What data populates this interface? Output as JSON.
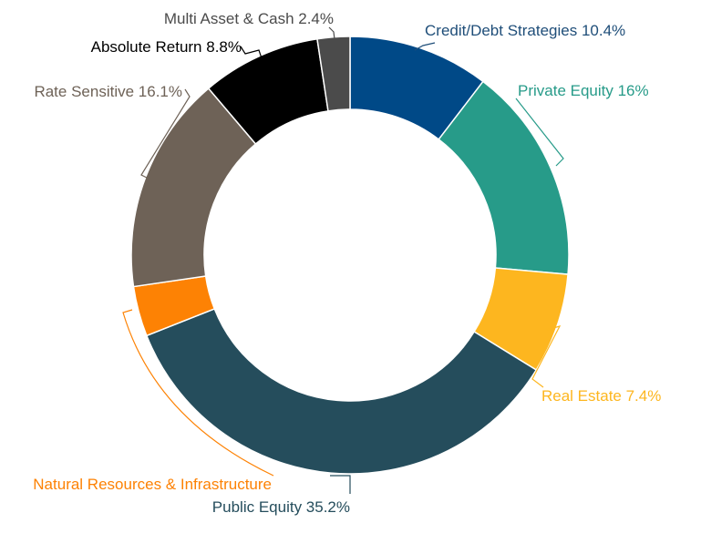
{
  "chart_data": {
    "type": "pie",
    "title": "",
    "slices": [
      {
        "label": "Credit/Debt Strategies",
        "value": 10.4,
        "value_label": "10.4%",
        "color": "#004987",
        "label_color": "#1f4e79"
      },
      {
        "label": "Private Equity",
        "value": 16,
        "value_label": "16%",
        "color": "#279b89",
        "label_color": "#279b89"
      },
      {
        "label": "Real Estate",
        "value": 7.4,
        "value_label": "7.4%",
        "color": "#fdb61f",
        "label_color": "#fdb61f"
      },
      {
        "label": "Public Equity",
        "value": 35.2,
        "value_label": "35.2%",
        "color": "#254d5c",
        "label_color": "#254d5c"
      },
      {
        "label": "Natural Resources & Infrastructure",
        "value": 3.7,
        "value_label": "",
        "color": "#fd8204",
        "label_color": "#fd8204"
      },
      {
        "label": "Rate Sensitive",
        "value": 16.1,
        "value_label": "16.1%",
        "color": "#6e6257",
        "label_color": "#6e6257"
      },
      {
        "label": "Absolute Return",
        "value": 8.8,
        "value_label": "8.8%",
        "color": "#000000",
        "label_color": "#000000"
      },
      {
        "label": "Multi Asset & Cash",
        "value": 2.4,
        "value_label": "2.4%",
        "color": "#4b4b4b",
        "label_color": "#4b4b4b"
      }
    ],
    "legend": "none",
    "style": "donut"
  }
}
